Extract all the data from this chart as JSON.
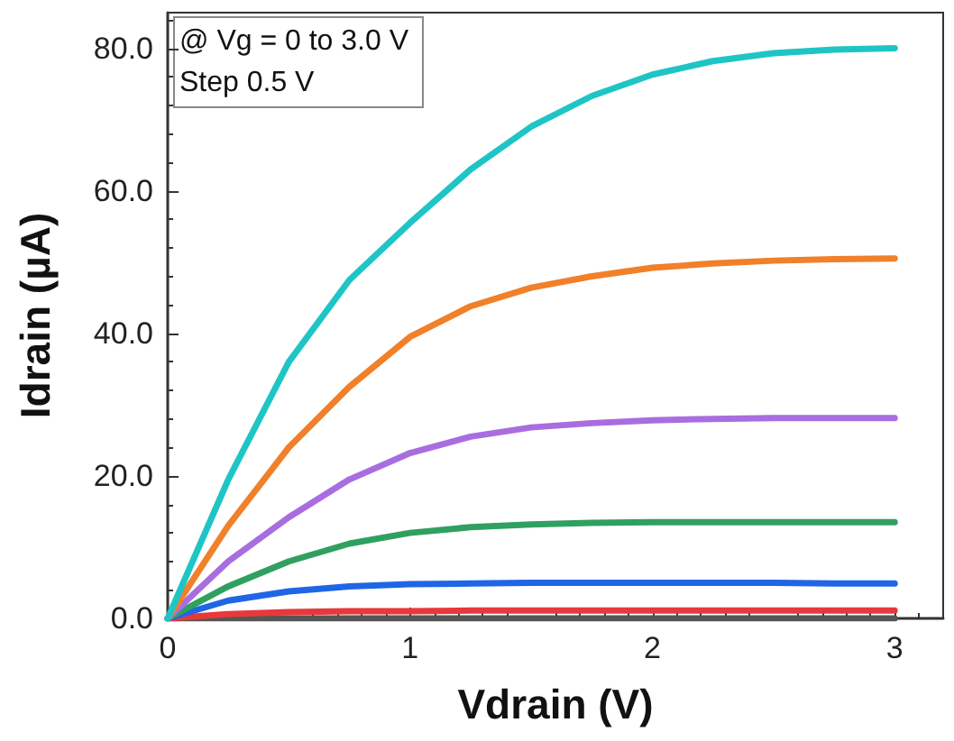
{
  "chart_data": {
    "type": "line",
    "xlabel": "Vdrain (V)",
    "ylabel": "Idrain (µA)",
    "annotations": [
      "@ Vg = 0 to 3.0 V",
      "Step 0.5 V"
    ],
    "x": [
      0,
      0.25,
      0.5,
      0.75,
      1,
      1.25,
      1.5,
      1.75,
      2,
      2.25,
      2.5,
      2.75,
      3
    ],
    "xlim": [
      0,
      3.2
    ],
    "xticks": [
      0,
      1,
      2,
      3
    ],
    "ylim": [
      0,
      85
    ],
    "yticks": [
      {
        "value": 0,
        "label": "0.0"
      },
      {
        "value": 20,
        "label": "20.0"
      },
      {
        "value": 40,
        "label": "40.0"
      },
      {
        "value": 60,
        "label": "60.0"
      },
      {
        "value": 80,
        "label": "80.0"
      }
    ],
    "marker": "none",
    "line_style": "solid",
    "series": [
      {
        "color": "#555555",
        "values": [
          0,
          0,
          0,
          0,
          0,
          0,
          0,
          0,
          0,
          0,
          0,
          0,
          0
        ]
      },
      {
        "color": "#e8383c",
        "values": [
          0,
          0.6,
          0.9,
          1,
          1,
          1.1,
          1.1,
          1.1,
          1.1,
          1.1,
          1.1,
          1.1,
          1.1
        ]
      },
      {
        "color": "#1f66e5",
        "values": [
          0,
          2.5,
          3.8,
          4.5,
          4.8,
          4.9,
          5,
          5,
          5,
          5,
          5,
          4.9,
          4.9
        ]
      },
      {
        "color": "#30a060",
        "values": [
          0,
          4.5,
          8,
          10.5,
          12,
          12.8,
          13.2,
          13.4,
          13.5,
          13.5,
          13.5,
          13.5,
          13.5
        ]
      },
      {
        "color": "#a86ee0",
        "values": [
          0,
          8,
          14.2,
          19.5,
          23.2,
          25.5,
          26.8,
          27.4,
          27.8,
          28,
          28.1,
          28.1,
          28.1
        ]
      },
      {
        "color": "#f0802a",
        "values": [
          0,
          13,
          24,
          32.5,
          39.5,
          43.8,
          46.4,
          48,
          49.2,
          49.8,
          50.2,
          50.4,
          50.5
        ]
      },
      {
        "color": "#1fc5c5",
        "values": [
          0,
          19.5,
          36,
          47.5,
          55.5,
          63,
          69,
          73.3,
          76.3,
          78.2,
          79.3,
          79.8,
          80
        ]
      }
    ]
  }
}
